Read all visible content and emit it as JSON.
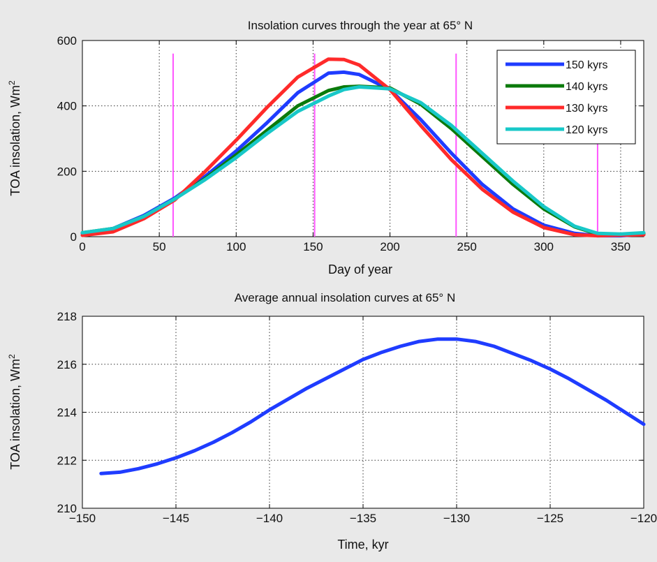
{
  "chart_data": [
    {
      "type": "line",
      "title": "Insolation curves through the year at 65° N",
      "xlabel": "Day of year",
      "ylabel": "TOA insolation, Wm",
      "ylabel_sup": "2",
      "xlim": [
        0,
        365
      ],
      "ylim": [
        0,
        600
      ],
      "xticks": [
        0,
        50,
        100,
        150,
        200,
        250,
        300,
        350
      ],
      "yticks": [
        0,
        200,
        400,
        600
      ],
      "grid": true,
      "legend_position": "top-right",
      "x": [
        0,
        20,
        40,
        60,
        80,
        100,
        120,
        140,
        160,
        170,
        180,
        200,
        220,
        240,
        260,
        280,
        300,
        320,
        335,
        350,
        365
      ],
      "series": [
        {
          "name": "150 kyrs",
          "color": "#1f3cff",
          "values": [
            10,
            25,
            65,
            118,
            185,
            262,
            348,
            440,
            500,
            503,
            496,
            450,
            358,
            255,
            160,
            85,
            35,
            10,
            3,
            3,
            8
          ]
        },
        {
          "name": "140 kyrs",
          "color": "#0b7a0b",
          "values": [
            12,
            25,
            62,
            115,
            178,
            250,
            325,
            400,
            447,
            458,
            460,
            455,
            405,
            330,
            245,
            160,
            85,
            30,
            8,
            5,
            10
          ]
        },
        {
          "name": "130 kyrs",
          "color": "#ff2a2a",
          "values": [
            4,
            15,
            55,
            112,
            200,
            295,
            395,
            488,
            543,
            542,
            525,
            450,
            340,
            235,
            145,
            75,
            28,
            6,
            3,
            5,
            6
          ]
        },
        {
          "name": "120 kyrs",
          "color": "#18c8c8",
          "values": [
            12,
            25,
            62,
            115,
            175,
            242,
            315,
            383,
            430,
            450,
            458,
            452,
            410,
            340,
            255,
            170,
            92,
            32,
            10,
            8,
            12
          ]
        }
      ],
      "vlines": {
        "color": "#ff55ff",
        "x": [
          59,
          151,
          243,
          335
        ],
        "top": 560
      }
    },
    {
      "type": "line",
      "title": "Average annual insolation curves at 65° N",
      "xlabel": "Time, kyr",
      "ylabel": "TOA insolation, Wm",
      "ylabel_sup": "2",
      "xlim": [
        -150,
        -120
      ],
      "ylim": [
        210,
        218
      ],
      "xticks": [
        -150,
        -145,
        -140,
        -135,
        -130,
        -125,
        -120
      ],
      "yticks": [
        210,
        212,
        214,
        216,
        218
      ],
      "grid": true,
      "x": [
        -149,
        -148,
        -147,
        -146,
        -145,
        -144,
        -143,
        -142,
        -141,
        -140,
        -139,
        -138,
        -137,
        -136,
        -135,
        -134,
        -133,
        -132,
        -131,
        -130,
        -129,
        -128,
        -127,
        -126,
        -125,
        -124,
        -123,
        -122,
        -121,
        -120
      ],
      "series": [
        {
          "color": "#1f3cff",
          "values": [
            211.45,
            211.5,
            211.65,
            211.85,
            212.1,
            212.4,
            212.75,
            213.15,
            213.6,
            214.1,
            214.55,
            215.0,
            215.4,
            215.8,
            216.2,
            216.5,
            216.75,
            216.95,
            217.05,
            217.05,
            216.95,
            216.75,
            216.45,
            216.15,
            215.8,
            215.4,
            214.95,
            214.5,
            214.0,
            213.5
          ]
        }
      ]
    }
  ]
}
